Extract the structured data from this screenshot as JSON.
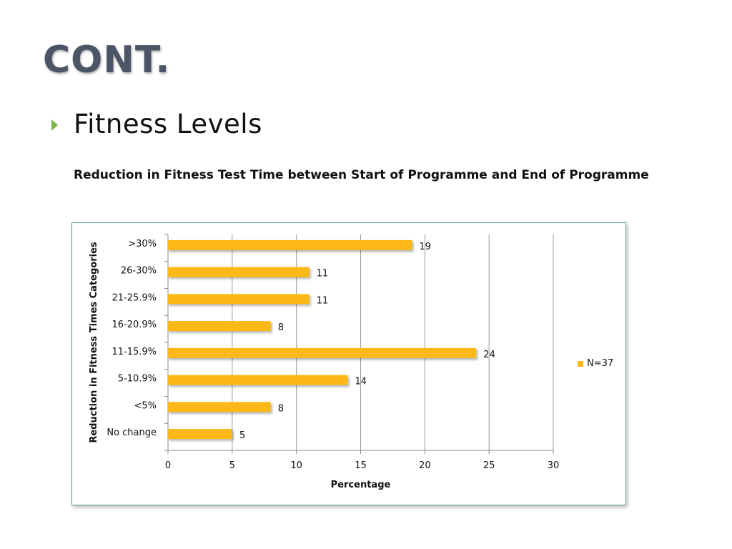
{
  "slide": {
    "title": "CONT.",
    "bullet": "Fitness Levels",
    "chart_heading": "Reduction in Fitness Test Time between Start of Programme and End of Programme"
  },
  "colors": {
    "bar": "#fbb813",
    "grid": "#9a9a9a",
    "axis": "#8a8a8a",
    "title": "#4b5566",
    "bullet": "#7ab648",
    "frame_border": "#5aa879"
  },
  "chart_data": {
    "type": "bar",
    "orientation": "horizontal",
    "categories": [
      ">30%",
      "26-30%",
      "21-25.9%",
      "16-20.9%",
      "11-15.9%",
      "5-10.9%",
      "<5%",
      "No change"
    ],
    "series": [
      {
        "name": "N=37",
        "values": [
          19,
          11,
          11,
          8,
          24,
          14,
          8,
          5
        ]
      }
    ],
    "xlabel": "Percentage",
    "ylabel": "Reduction in Fitness Times Categories",
    "xlim": [
      0,
      30
    ],
    "xticks": [
      0,
      5,
      10,
      15,
      20,
      25,
      30
    ],
    "grid": true,
    "legend": "right",
    "data_labels": true
  }
}
